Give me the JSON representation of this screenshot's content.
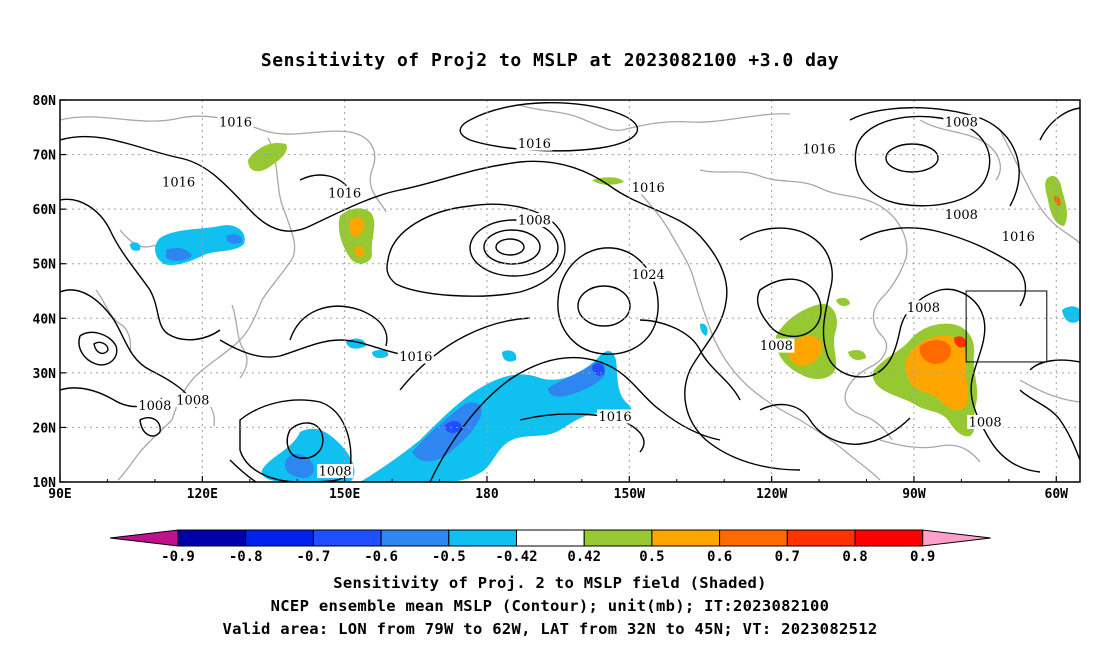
{
  "title": "Sensitivity of Proj2 to MSLP at 2023082100 +3.0 day",
  "captions": [
    "Sensitivity of Proj. 2 to MSLP field (Shaded)",
    "NCEP ensemble mean MSLP (Contour); unit(mb); IT:2023082100",
    "Valid area: LON from 79W to 62W, LAT from 32N to 45N; VT: 2023082512"
  ],
  "lon_ticks": [
    "90E",
    "120E",
    "150E",
    "180",
    "150W",
    "120W",
    "90W",
    "60W"
  ],
  "lat_ticks": [
    "80N",
    "70N",
    "60N",
    "50N",
    "40N",
    "30N",
    "20N",
    "10N"
  ],
  "contour_labels": [
    {
      "text": "1016",
      "lon": 127,
      "lat": 76
    },
    {
      "text": "1016",
      "lon": 115,
      "lat": 65
    },
    {
      "text": "1016",
      "lon": 150,
      "lat": 63
    },
    {
      "text": "1016",
      "lon": 190,
      "lat": 72
    },
    {
      "text": "1016",
      "lon": 214,
      "lat": 64
    },
    {
      "text": "1016",
      "lon": 250,
      "lat": 71
    },
    {
      "text": "1008",
      "lon": 280,
      "lat": 76
    },
    {
      "text": "1008",
      "lon": 190,
      "lat": 58
    },
    {
      "text": "1024",
      "lon": 214,
      "lat": 48
    },
    {
      "text": "1008",
      "lon": 280,
      "lat": 59
    },
    {
      "text": "1016",
      "lon": 292,
      "lat": 55
    },
    {
      "text": "1008",
      "lon": 272,
      "lat": 42
    },
    {
      "text": "1008",
      "lon": 241,
      "lat": 35
    },
    {
      "text": "1016",
      "lon": 165,
      "lat": 33
    },
    {
      "text": "1016",
      "lon": 207,
      "lat": 22
    },
    {
      "text": "1008",
      "lon": 110,
      "lat": 24
    },
    {
      "text": "1008",
      "lon": 118,
      "lat": 25
    },
    {
      "text": "1008",
      "lon": 285,
      "lat": 21
    },
    {
      "text": "1008",
      "lon": 148,
      "lat": 12
    }
  ],
  "valid_area": {
    "lon": [
      281,
      298
    ],
    "lat": [
      32,
      45
    ]
  },
  "colorbar": {
    "ticks": [
      "-0.9",
      "-0.8",
      "-0.7",
      "-0.6",
      "-0.5",
      "-0.42",
      "0.42",
      "0.5",
      "0.6",
      "0.7",
      "0.8",
      "0.9"
    ],
    "colors": [
      "#c0118c",
      "#0000a8",
      "#0022ee",
      "#1f4fff",
      "#2e86f0",
      "#0fc0f0",
      "#ffffff",
      "#96c832",
      "#ffa500",
      "#ff6a00",
      "#ff3200",
      "#ff0000",
      "#ff9ec8"
    ]
  },
  "colors": {
    "contour": "#000000",
    "coast": "#a8a8a8",
    "grid": "#a0a0a0"
  }
}
